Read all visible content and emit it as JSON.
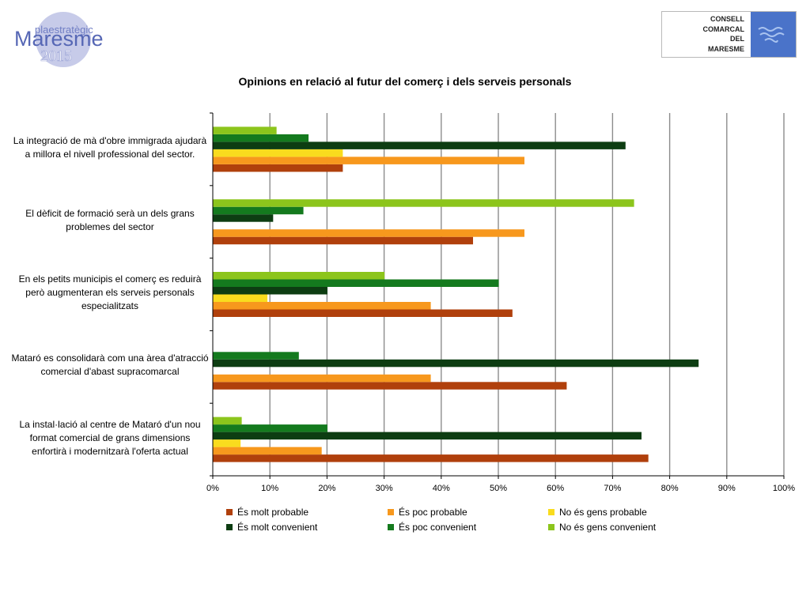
{
  "header": {
    "logo_left": {
      "line1": "plaestratègic",
      "line2": "Maresme",
      "line3": "2015"
    },
    "logo_right": {
      "lines": [
        "CONSELL",
        "COMARCAL",
        "DEL",
        "MARESME"
      ],
      "icon": "waves-icon"
    }
  },
  "chart_data": {
    "type": "bar",
    "orientation": "horizontal",
    "title": "Opinions en relació al futur del comerç i dels serveis personals",
    "xlabel": "",
    "ylabel": "",
    "xlim": [
      0,
      100
    ],
    "x_ticks": [
      "0%",
      "10%",
      "20%",
      "30%",
      "40%",
      "50%",
      "60%",
      "70%",
      "80%",
      "90%",
      "100%"
    ],
    "grid": true,
    "legend_position": "bottom",
    "categories": [
      "La integració de mà d'obre immigrada ajudarà a millora el nivell professional del sector.",
      "El dèficit de formació serà un dels grans problemes del sector",
      "En els petits municipis el comerç es reduirà però augmenteran els serveis personals especialitzats",
      "Mataró es consolidarà com una àrea d'atracció comercial d'abast supracomarcal",
      "La instal·lació al centre de Mataró d'un nou format comercial de grans dimensions enfortirà i modernitzarà l'oferta actual"
    ],
    "series": [
      {
        "name": "És molt probable",
        "color": "#b0400c",
        "values": [
          22.7,
          45.5,
          52.4,
          61.9,
          76.2
        ]
      },
      {
        "name": "És poc probable",
        "color": "#f7981d",
        "values": [
          54.5,
          54.5,
          38.1,
          38.1,
          19.0
        ]
      },
      {
        "name": "No és gens probable",
        "color": "#f9dc1e",
        "values": [
          22.7,
          0,
          9.5,
          0,
          4.8
        ]
      },
      {
        "name": "És molt convenient",
        "color": "#0d3d12",
        "values": [
          72.2,
          10.5,
          20.0,
          85.0,
          75.0
        ]
      },
      {
        "name": "És poc convenient",
        "color": "#147a1e",
        "values": [
          16.7,
          15.8,
          50.0,
          15.0,
          20.0
        ]
      },
      {
        "name": "No és gens convenient",
        "color": "#8cc51c",
        "values": [
          11.1,
          73.7,
          30.0,
          0,
          5.0
        ]
      }
    ]
  }
}
